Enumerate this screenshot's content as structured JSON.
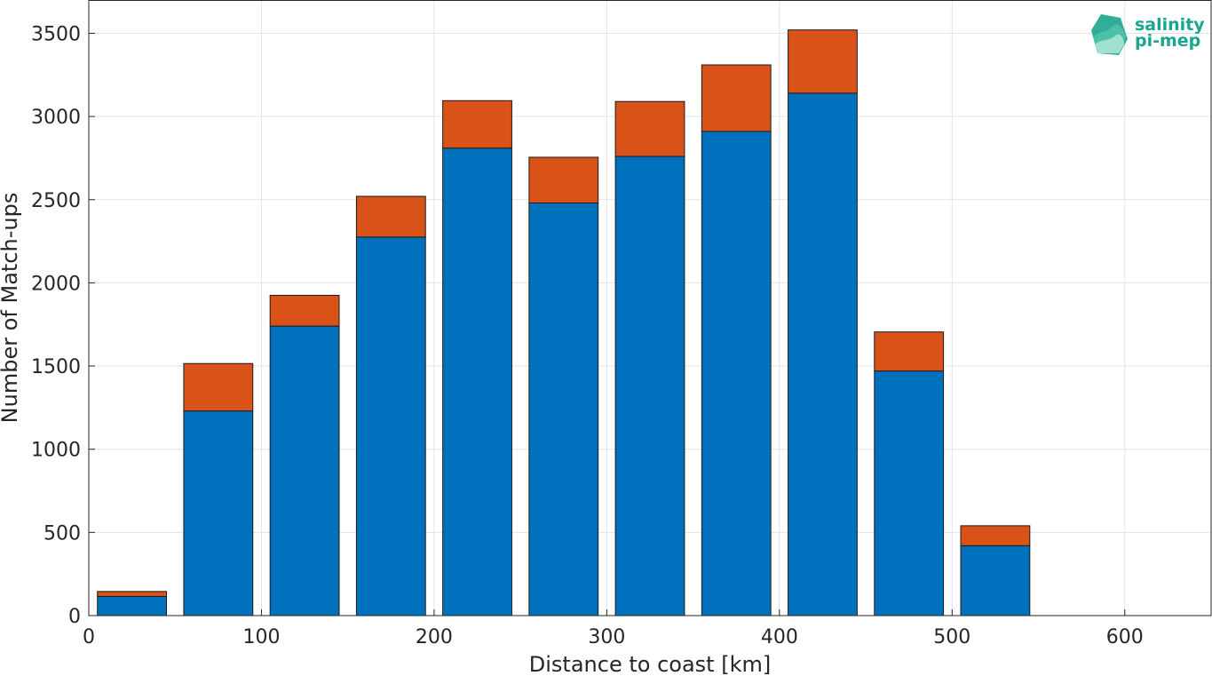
{
  "chart_data": {
    "type": "bar",
    "stacked": true,
    "xlabel": "Distance to coast [km]",
    "ylabel": "Number of Match-ups",
    "xlim": [
      0,
      650
    ],
    "ylim": [
      0,
      3700
    ],
    "xticks": [
      0,
      100,
      200,
      300,
      400,
      500,
      600
    ],
    "yticks": [
      0,
      500,
      1000,
      1500,
      2000,
      2500,
      3000,
      3500
    ],
    "grid": true,
    "bar_width": 40,
    "x": [
      25,
      75,
      125,
      175,
      225,
      275,
      325,
      375,
      425,
      475,
      525
    ],
    "series": [
      {
        "color": "#0072bd",
        "values": [
          115,
          1230,
          1740,
          2275,
          2810,
          2480,
          2760,
          2910,
          3140,
          1470,
          420
        ]
      },
      {
        "color": "#d95319",
        "values": [
          30,
          285,
          185,
          245,
          285,
          275,
          330,
          400,
          380,
          235,
          120
        ]
      }
    ]
  },
  "logo": {
    "line1": "salinity",
    "line2": "pi-mep",
    "color": "#1aa58f"
  }
}
